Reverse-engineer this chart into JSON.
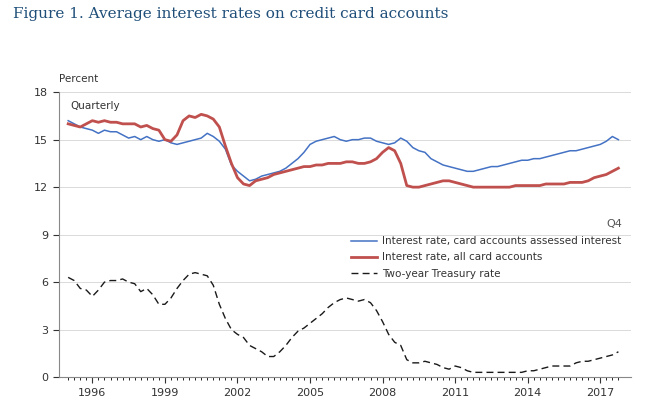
{
  "title": "Figure 1. Average interest rates on credit card accounts",
  "ylabel": "Percent",
  "sublabel": "Quarterly",
  "q4_label": "Q4",
  "ylim": [
    0,
    18
  ],
  "yticks": [
    0,
    3,
    6,
    9,
    12,
    15,
    18
  ],
  "xticks": [
    1996,
    1999,
    2002,
    2005,
    2008,
    2011,
    2014,
    2017
  ],
  "xlim": [
    1994.6,
    2018.25
  ],
  "legend_labels": [
    "Interest rate, card accounts assessed interest",
    "Interest rate, all card accounts",
    "Two-year Treasury rate"
  ],
  "line1_color": "#4472C4",
  "line2_color": "#C0504D",
  "line3_color": "#1a1a1a",
  "title_color": "#1F4E79",
  "text_color": "#333333",
  "background_color": "#FFFFFF",
  "dates": [
    1995.0,
    1995.25,
    1995.5,
    1995.75,
    1996.0,
    1996.25,
    1996.5,
    1996.75,
    1997.0,
    1997.25,
    1997.5,
    1997.75,
    1998.0,
    1998.25,
    1998.5,
    1998.75,
    1999.0,
    1999.25,
    1999.5,
    1999.75,
    2000.0,
    2000.25,
    2000.5,
    2000.75,
    2001.0,
    2001.25,
    2001.5,
    2001.75,
    2002.0,
    2002.25,
    2002.5,
    2002.75,
    2003.0,
    2003.25,
    2003.5,
    2003.75,
    2004.0,
    2004.25,
    2004.5,
    2004.75,
    2005.0,
    2005.25,
    2005.5,
    2005.75,
    2006.0,
    2006.25,
    2006.5,
    2006.75,
    2007.0,
    2007.25,
    2007.5,
    2007.75,
    2008.0,
    2008.25,
    2008.5,
    2008.75,
    2009.0,
    2009.25,
    2009.5,
    2009.75,
    2010.0,
    2010.25,
    2010.5,
    2010.75,
    2011.0,
    2011.25,
    2011.5,
    2011.75,
    2012.0,
    2012.25,
    2012.5,
    2012.75,
    2013.0,
    2013.25,
    2013.5,
    2013.75,
    2014.0,
    2014.25,
    2014.5,
    2014.75,
    2015.0,
    2015.25,
    2015.5,
    2015.75,
    2016.0,
    2016.25,
    2016.5,
    2016.75,
    2017.0,
    2017.25,
    2017.5,
    2017.75
  ],
  "line1": [
    16.2,
    16.0,
    15.8,
    15.7,
    15.6,
    15.4,
    15.6,
    15.5,
    15.5,
    15.3,
    15.1,
    15.2,
    15.0,
    15.2,
    15.0,
    14.9,
    15.0,
    14.8,
    14.7,
    14.8,
    14.9,
    15.0,
    15.1,
    15.4,
    15.2,
    14.9,
    14.4,
    13.4,
    13.0,
    12.7,
    12.4,
    12.5,
    12.7,
    12.8,
    12.9,
    13.0,
    13.2,
    13.5,
    13.8,
    14.2,
    14.7,
    14.9,
    15.0,
    15.1,
    15.2,
    15.0,
    14.9,
    15.0,
    15.0,
    15.1,
    15.1,
    14.9,
    14.8,
    14.7,
    14.8,
    15.1,
    14.9,
    14.5,
    14.3,
    14.2,
    13.8,
    13.6,
    13.4,
    13.3,
    13.2,
    13.1,
    13.0,
    13.0,
    13.1,
    13.2,
    13.3,
    13.3,
    13.4,
    13.5,
    13.6,
    13.7,
    13.7,
    13.8,
    13.8,
    13.9,
    14.0,
    14.1,
    14.2,
    14.3,
    14.3,
    14.4,
    14.5,
    14.6,
    14.7,
    14.9,
    15.2,
    15.0
  ],
  "line2": [
    16.0,
    15.9,
    15.8,
    16.0,
    16.2,
    16.1,
    16.2,
    16.1,
    16.1,
    16.0,
    16.0,
    16.0,
    15.8,
    15.9,
    15.7,
    15.6,
    15.0,
    14.9,
    15.3,
    16.2,
    16.5,
    16.4,
    16.6,
    16.5,
    16.3,
    15.8,
    14.6,
    13.5,
    12.6,
    12.2,
    12.1,
    12.4,
    12.5,
    12.6,
    12.8,
    12.9,
    13.0,
    13.1,
    13.2,
    13.3,
    13.3,
    13.4,
    13.4,
    13.5,
    13.5,
    13.5,
    13.6,
    13.6,
    13.5,
    13.5,
    13.6,
    13.8,
    14.2,
    14.5,
    14.3,
    13.5,
    12.1,
    12.0,
    12.0,
    12.1,
    12.2,
    12.3,
    12.4,
    12.4,
    12.3,
    12.2,
    12.1,
    12.0,
    12.0,
    12.0,
    12.0,
    12.0,
    12.0,
    12.0,
    12.1,
    12.1,
    12.1,
    12.1,
    12.1,
    12.2,
    12.2,
    12.2,
    12.2,
    12.3,
    12.3,
    12.3,
    12.4,
    12.6,
    12.7,
    12.8,
    13.0,
    13.2
  ],
  "line3": [
    6.3,
    6.1,
    5.6,
    5.5,
    5.1,
    5.5,
    6.0,
    6.1,
    6.1,
    6.2,
    6.0,
    5.9,
    5.4,
    5.6,
    5.2,
    4.6,
    4.6,
    5.0,
    5.6,
    6.1,
    6.5,
    6.6,
    6.5,
    6.4,
    5.8,
    4.6,
    3.7,
    3.0,
    2.7,
    2.5,
    2.0,
    1.8,
    1.6,
    1.3,
    1.3,
    1.6,
    2.0,
    2.5,
    2.9,
    3.1,
    3.4,
    3.7,
    4.0,
    4.4,
    4.7,
    4.9,
    5.0,
    4.9,
    4.8,
    4.9,
    4.7,
    4.2,
    3.5,
    2.7,
    2.2,
    2.0,
    1.1,
    0.9,
    0.9,
    1.0,
    0.9,
    0.8,
    0.6,
    0.5,
    0.7,
    0.6,
    0.4,
    0.3,
    0.3,
    0.3,
    0.3,
    0.3,
    0.3,
    0.3,
    0.3,
    0.3,
    0.4,
    0.4,
    0.5,
    0.6,
    0.7,
    0.7,
    0.7,
    0.7,
    0.9,
    1.0,
    1.0,
    1.1,
    1.2,
    1.3,
    1.4,
    1.6
  ]
}
